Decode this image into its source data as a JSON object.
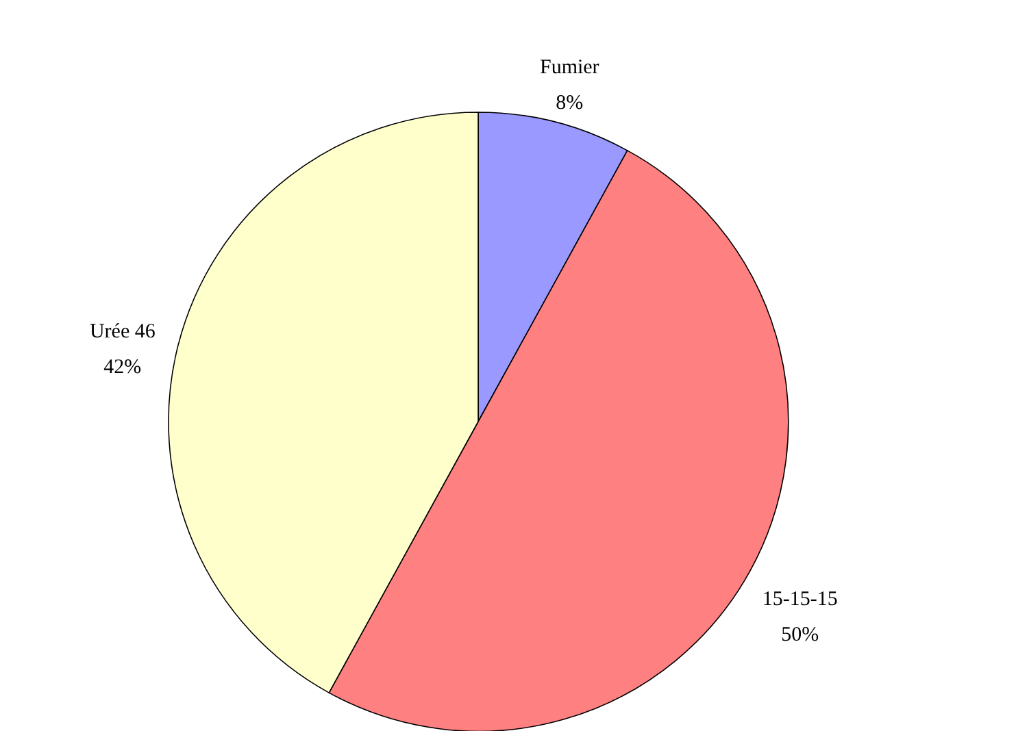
{
  "chart_data": {
    "type": "pie",
    "categories": [
      "Fumier",
      "15-15-15",
      "Urée 46"
    ],
    "values": [
      8,
      50,
      42
    ],
    "value_labels": [
      "8%",
      "50%",
      "42%"
    ],
    "colors": [
      "#9999ff",
      "#ff8080",
      "#ffffcc"
    ],
    "legend": false
  }
}
